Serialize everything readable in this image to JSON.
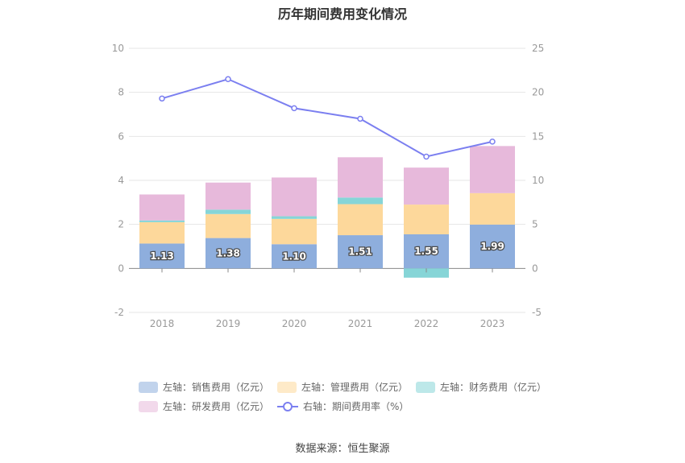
{
  "title": "历年期间费用变化情况",
  "source": "数据来源：恒生聚源",
  "colors": {
    "sales": "#8eaedd",
    "admin": "#fdd89b",
    "finance": "#86d5d7",
    "rnd": "#e7b9db",
    "rate": "#7b7ff0",
    "axis_text": "#999999",
    "grid": "#e6e6e6"
  },
  "legend": [
    {
      "label": "左轴：销售费用（亿元）",
      "color_key": "sales",
      "kind": "bar"
    },
    {
      "label": "左轴：管理费用（亿元）",
      "color_key": "admin",
      "kind": "bar"
    },
    {
      "label": "左轴：财务费用（亿元）",
      "color_key": "finance",
      "kind": "bar"
    },
    {
      "label": "左轴：研发费用（亿元）",
      "color_key": "rnd",
      "kind": "bar"
    },
    {
      "label": "右轴：期间费用率（%）",
      "color_key": "rate",
      "kind": "line"
    }
  ],
  "chart_data": {
    "type": "bar",
    "title": "历年期间费用变化情况",
    "categories": [
      "2018",
      "2019",
      "2020",
      "2021",
      "2022",
      "2023"
    ],
    "stacked": true,
    "left_axis": {
      "min": -2,
      "max": 10,
      "ticks": [
        -2,
        0,
        2,
        4,
        6,
        8,
        10
      ]
    },
    "right_axis": {
      "min": -5,
      "max": 25,
      "ticks": [
        -5,
        0,
        5,
        10,
        15,
        20,
        25
      ]
    },
    "grid": true,
    "legend_position": "bottom",
    "series": [
      {
        "name": "左轴：销售费用（亿元）",
        "axis": "left",
        "type": "bar",
        "color_key": "sales",
        "values": [
          1.13,
          1.38,
          1.1,
          1.51,
          1.55,
          1.99
        ],
        "labels": [
          "1.13",
          "1.38",
          "1.10",
          "1.51",
          "1.55",
          "1.99"
        ]
      },
      {
        "name": "左轴：管理费用（亿元）",
        "axis": "left",
        "type": "bar",
        "color_key": "admin",
        "values": [
          0.97,
          1.09,
          1.15,
          1.41,
          1.35,
          1.43
        ]
      },
      {
        "name": "左轴：财务费用（亿元）",
        "axis": "left",
        "type": "bar",
        "color_key": "finance",
        "values": [
          0.08,
          0.2,
          0.12,
          0.3,
          -0.42,
          0.0
        ]
      },
      {
        "name": "左轴：研发费用（亿元）",
        "axis": "left",
        "type": "bar",
        "color_key": "rnd",
        "values": [
          1.18,
          1.23,
          1.76,
          1.83,
          1.68,
          2.14
        ]
      },
      {
        "name": "右轴：期间费用率（%）",
        "axis": "right",
        "type": "line",
        "color_key": "rate",
        "values": [
          19.3,
          21.5,
          18.2,
          17.0,
          12.7,
          14.4
        ]
      }
    ]
  }
}
